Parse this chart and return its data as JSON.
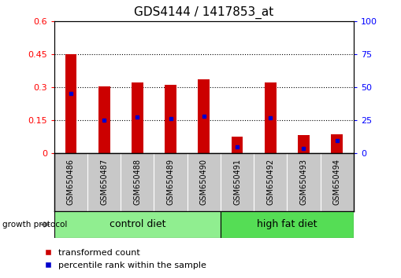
{
  "title": "GDS4144 / 1417853_at",
  "samples": [
    "GSM650486",
    "GSM650487",
    "GSM650488",
    "GSM650489",
    "GSM650490",
    "GSM650491",
    "GSM650492",
    "GSM650493",
    "GSM650494"
  ],
  "transformed_count": [
    0.45,
    0.303,
    0.32,
    0.31,
    0.335,
    0.075,
    0.32,
    0.08,
    0.085
  ],
  "percentile_rank": [
    0.27,
    0.15,
    0.162,
    0.157,
    0.168,
    0.028,
    0.158,
    0.022,
    0.055
  ],
  "groups": [
    {
      "label": "control diet",
      "start": 0,
      "end": 4,
      "color": "#90EE90"
    },
    {
      "label": "high fat diet",
      "start": 5,
      "end": 8,
      "color": "#55DD55"
    }
  ],
  "group_protocol": "growth protocol",
  "ylim_left": [
    0,
    0.6
  ],
  "ylim_right": [
    0,
    100
  ],
  "yticks_left": [
    0,
    0.15,
    0.3,
    0.45,
    0.6
  ],
  "yticks_right": [
    0,
    25,
    50,
    75,
    100
  ],
  "bar_color": "#CC0000",
  "dot_color": "#0000CC",
  "label_bg": "#C8C8C8",
  "title_fontsize": 11,
  "axis_fontsize": 8,
  "legend_fontsize": 8,
  "group_label_fontsize": 9,
  "sample_fontsize": 7
}
